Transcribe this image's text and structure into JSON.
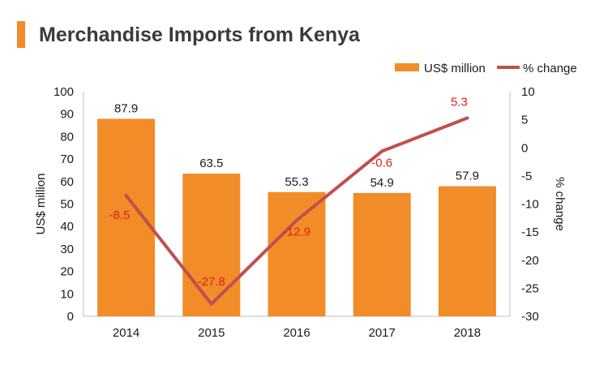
{
  "title": "Merchandise Imports from Kenya",
  "colors": {
    "accent": "#f28c28",
    "bar": "#f28c28",
    "line": "#c0504d",
    "line_label": "#e0201b",
    "text": "#1a1a1a",
    "axis": "#bfbfbf"
  },
  "legend": {
    "bar_label": "US$ million",
    "line_label": "% change",
    "placement": "top-right"
  },
  "chart_data": {
    "type": "bar",
    "title": "Merchandise Imports from Kenya",
    "categories": [
      "2014",
      "2015",
      "2016",
      "2017",
      "2018"
    ],
    "series": [
      {
        "name": "US$ million",
        "type": "bar",
        "axis": "left",
        "values": [
          87.9,
          63.5,
          55.3,
          54.9,
          57.9
        ]
      },
      {
        "name": "% change",
        "type": "line",
        "axis": "right",
        "values": [
          -8.5,
          -27.8,
          -12.9,
          -0.6,
          5.3
        ]
      }
    ],
    "ylabel": "US$ million",
    "y2label": "% change",
    "ylim": [
      0,
      100
    ],
    "y2lim": [
      -30,
      10
    ],
    "yticks": [
      0,
      10,
      20,
      30,
      40,
      50,
      60,
      70,
      80,
      90,
      100
    ],
    "y2ticks": [
      -30,
      -25,
      -20,
      -15,
      -10,
      -5,
      0,
      5,
      10
    ],
    "grid": false
  }
}
